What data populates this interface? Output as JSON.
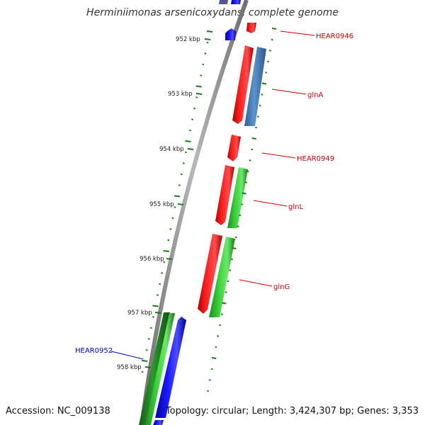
{
  "title": "Herminiimonas arsenicoxydans, complete genome",
  "footer": {
    "accession": "Accession: NC_009138",
    "summary": "Topology: circular; Length: 3,424,307 bp; Genes: 3,353"
  },
  "ticks": [
    "952 kbp",
    "953 kbp",
    "954 kbp",
    "955 kbp",
    "956 kbp",
    "957 kbp",
    "958 kbp"
  ],
  "genes": [
    {
      "name": "HEAR0946",
      "color": "#cc0000"
    },
    {
      "name": "glnA",
      "color": "#cc0000"
    },
    {
      "name": "HEAR0949",
      "color": "#cc0000"
    },
    {
      "name": "glnL",
      "color": "#cc0000"
    },
    {
      "name": "glnG",
      "color": "#cc0000"
    },
    {
      "name": "HEAR0952",
      "color": "#0000cc"
    }
  ],
  "colors": {
    "red_feature": "#ff1a1a",
    "blue_feature": "#1a1aff",
    "green_feature": "#33cc33",
    "dark_green_feature": "#2a9a2a",
    "steelblue_feature": "#4f86c0",
    "backbone": "#8c8c8c",
    "tick": "#1a7a1a"
  }
}
